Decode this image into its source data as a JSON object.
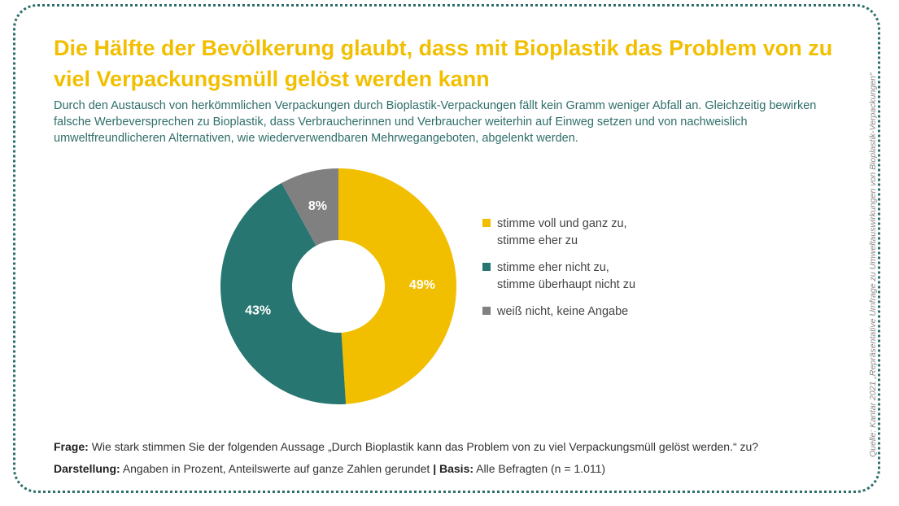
{
  "header": {
    "title": "Die Hälfte der Bevölkerung glaubt, dass mit Bioplastik das Problem von zu viel Verpackungsmüll gelöst werden kann",
    "subtitle": "Durch den Austausch von herkömmlichen Verpackungen durch Bioplastik-Verpackungen fällt kein Gramm weniger Abfall an. Gleichzeitig bewirken falsche Werbeversprechen zu Bioplastik, dass Verbraucherinnen und Verbraucher weiterhin auf Einweg setzen und von nachweislich umweltfreundlicheren Alternativen, wie wiederverwendbaren Mehrwegangeboten, abgelenkt werden."
  },
  "chart_data": {
    "type": "pie",
    "style": "donut",
    "slices": [
      {
        "label": "stimme voll und ganz zu,\nstimme eher zu",
        "value": 49,
        "value_label": "49%",
        "color": "#f2bf00"
      },
      {
        "label": "stimme eher nicht zu,\nstimme überhaupt nicht zu",
        "value": 43,
        "value_label": "43%",
        "color": "#277671"
      },
      {
        "label": "weiß nicht, keine Angabe",
        "value": 8,
        "value_label": "8%",
        "color": "#808080"
      }
    ],
    "legend_position": "right"
  },
  "footer": {
    "question_label": "Frage:",
    "question_text": "Wie stark stimmen Sie der folgenden Aussage „Durch Bioplastik kann das Problem von zu viel Verpackungsmüll gelöst werden.“ zu?",
    "display_label": "Darstellung:",
    "display_text": "Angaben in Prozent, Anteilswerte auf ganze Zahlen gerundet",
    "separator": "|",
    "basis_label": "Basis:",
    "basis_text": "Alle Befragten (n = 1.011)"
  },
  "source": "Quelle: Kantar 2021 „Repräsentative Umfrage zu Umweltauswirkungen von Bioplastik-Verpackungen“",
  "colors": {
    "title": "#f2bf00",
    "frame": "#2e6e6a",
    "subtitle": "#2e6e6a"
  }
}
